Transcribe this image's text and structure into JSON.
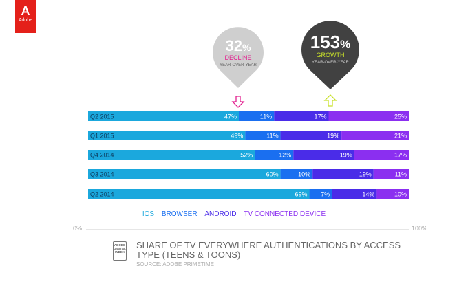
{
  "logo": {
    "text": "Adobe"
  },
  "chart_data": {
    "type": "bar",
    "stacked": true,
    "orientation": "horizontal",
    "title": "SHARE OF TV EVERYWHERE AUTHENTICATIONS BY ACCESS TYPE (TEENS & TOONS)",
    "source": "SOURCE: ADOBE PRIMETIME",
    "categories": [
      "Q2 2015",
      "Q1 2015",
      "Q4 2014",
      "Q3 2014",
      "Q2 2014"
    ],
    "series": [
      {
        "name": "IOS",
        "color": "#1ba8dd",
        "values": [
          47,
          49,
          52,
          60,
          69
        ]
      },
      {
        "name": "BROWSER",
        "color": "#1a6ff0",
        "values": [
          11,
          11,
          12,
          10,
          7
        ]
      },
      {
        "name": "ANDROID",
        "color": "#4a2ce8",
        "values": [
          17,
          19,
          19,
          19,
          14
        ]
      },
      {
        "name": "TV CONNECTED DEVICE",
        "color": "#8b2ff0",
        "values": [
          25,
          21,
          17,
          11,
          10
        ]
      }
    ],
    "xlim": [
      0,
      100
    ],
    "xtick_labels": [
      "0%",
      "100%"
    ],
    "legend_placement": "bottom",
    "annotations": [
      {
        "big": "32",
        "pct": "%",
        "label": "DECLINE",
        "sub": "YEAR-OVER-YEAR",
        "series": "IOS",
        "direction": "down"
      },
      {
        "big": "153",
        "pct": "%",
        "label": "GROWTH",
        "sub": "YEAR-OVER-YEAR",
        "series": "TV CONNECTED DEVICE",
        "direction": "up"
      }
    ]
  },
  "badge": {
    "text": "ADOBE DIGITAL INDEX"
  }
}
